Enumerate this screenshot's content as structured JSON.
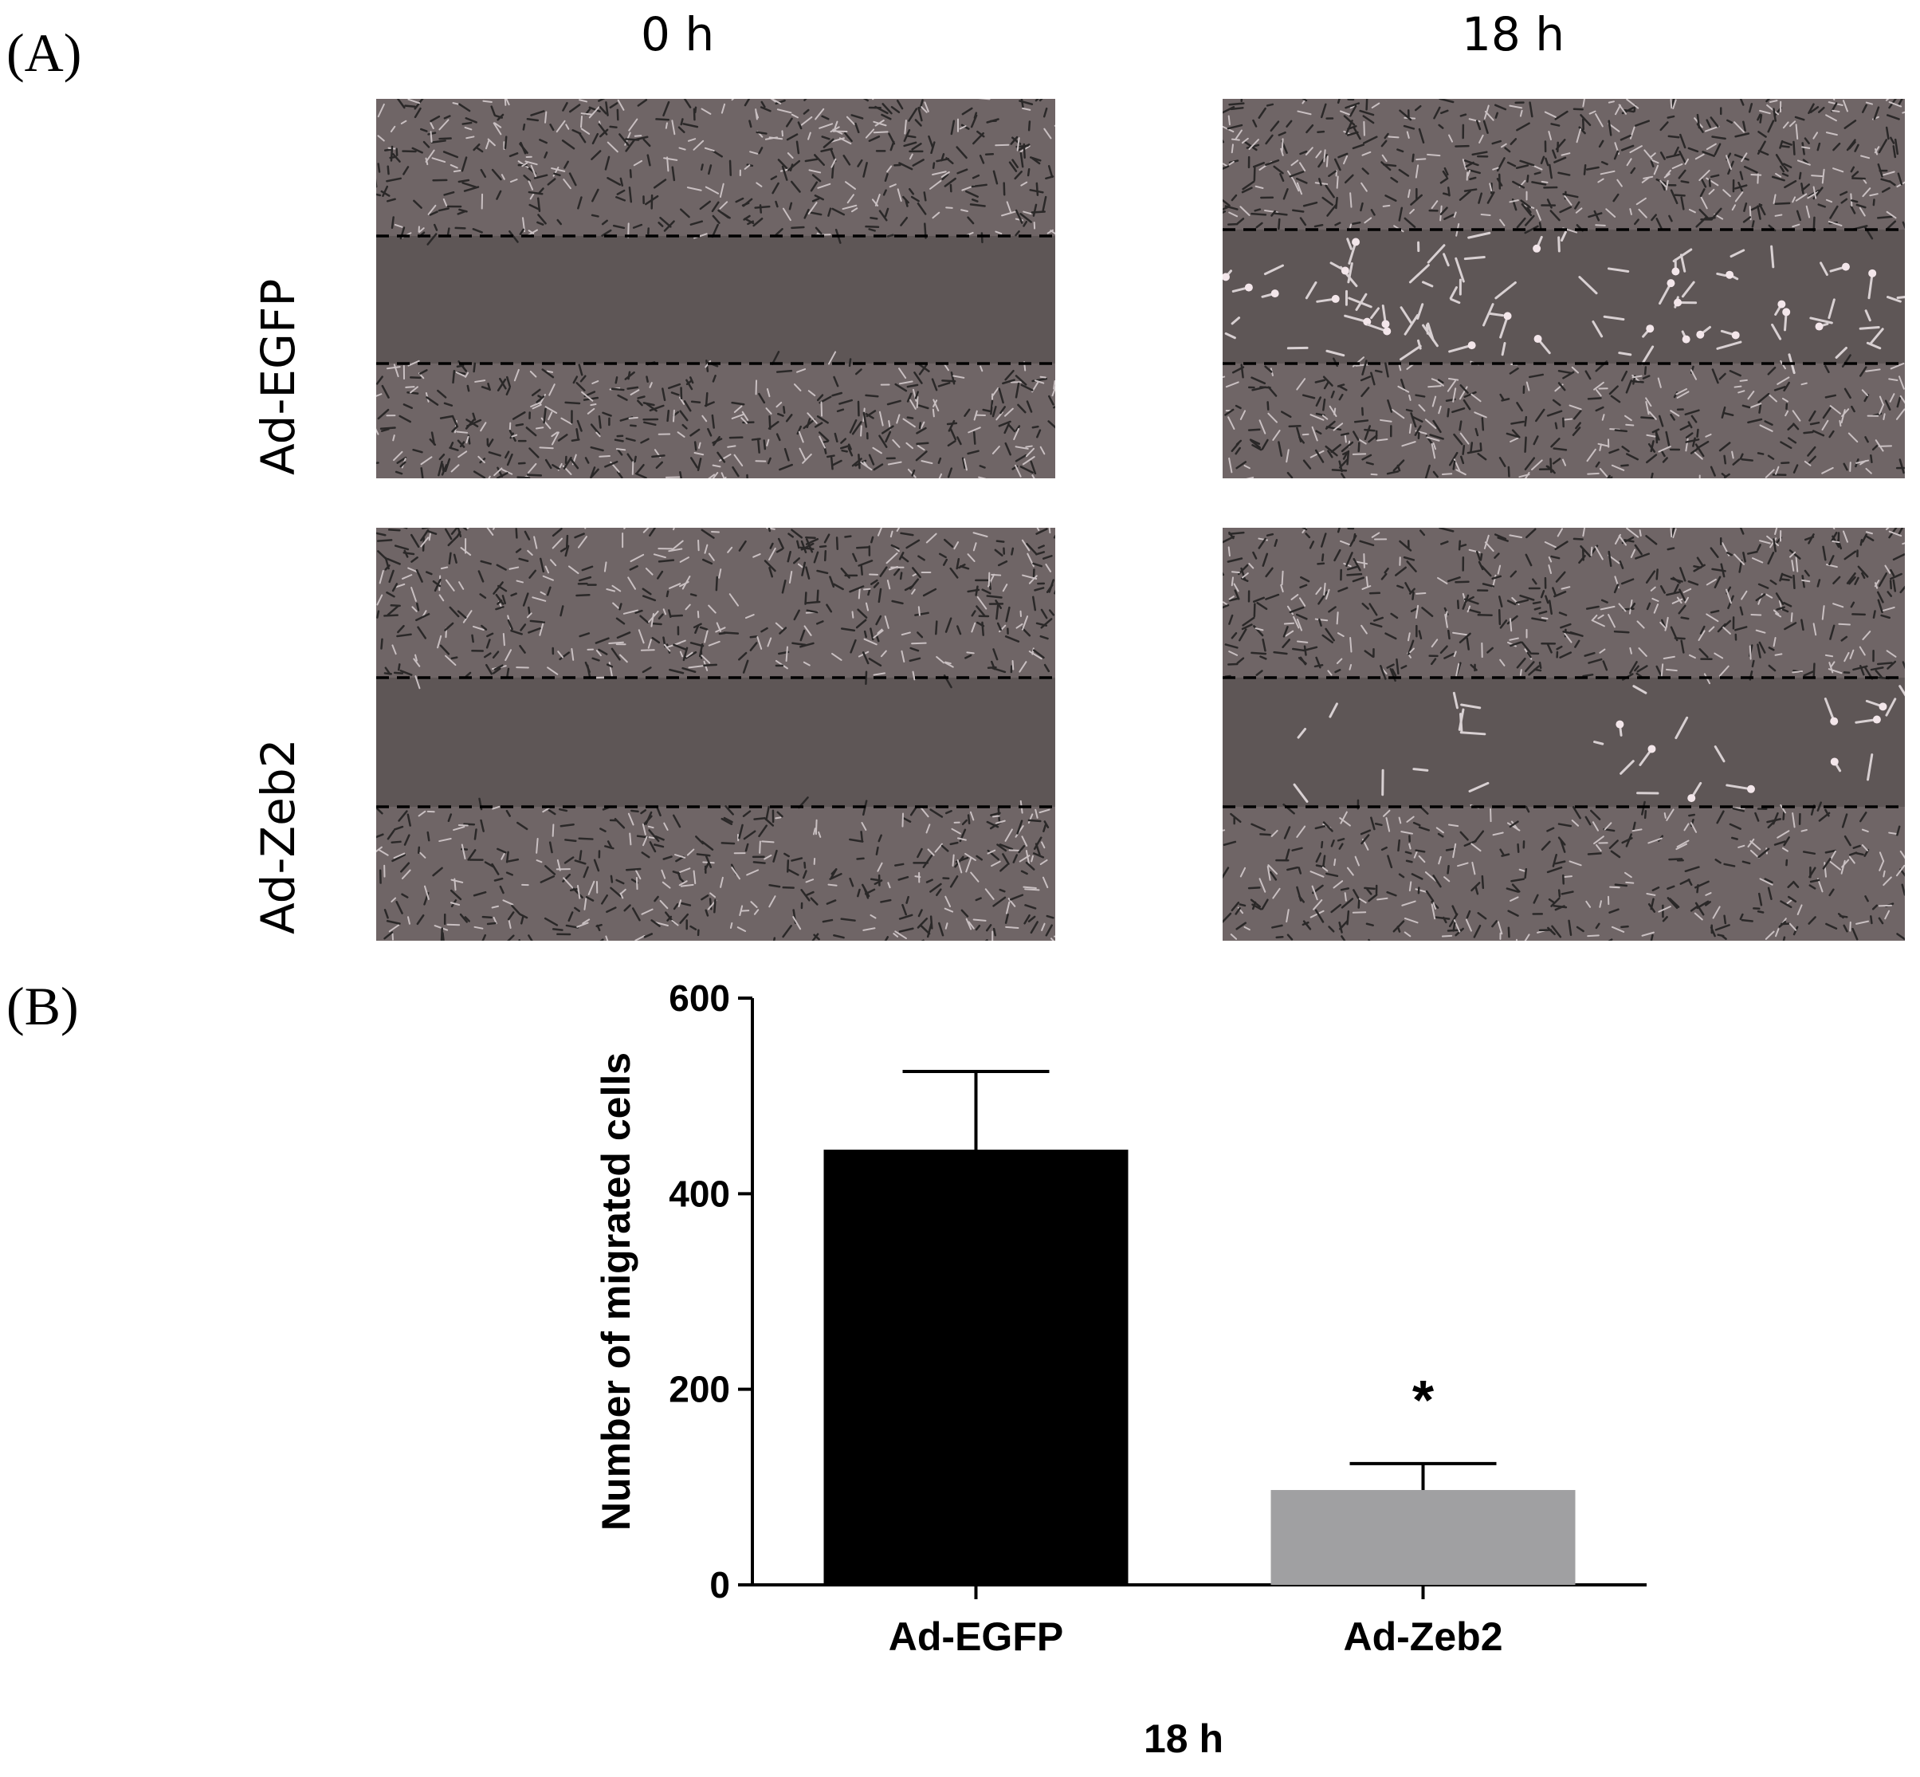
{
  "figure": {
    "panel_a_label": "(A)",
    "panel_b_label": "(B)",
    "columns": [
      "0 h",
      "18 h"
    ],
    "rows": [
      "Ad-EGFP",
      "Ad-Zeb2"
    ],
    "micrographs": [
      {
        "name": "micrograph-ad-egfp-0h",
        "row": "Ad-EGFP",
        "col": "0 h",
        "cells_in_gap": 0
      },
      {
        "name": "micrograph-ad-egfp-18h",
        "row": "Ad-EGFP",
        "col": "18 h",
        "cells_in_gap": 90
      },
      {
        "name": "micrograph-ad-zeb2-0h",
        "row": "Ad-Zeb2",
        "col": "0 h",
        "cells_in_gap": 0
      },
      {
        "name": "micrograph-ad-zeb2-18h",
        "row": "Ad-Zeb2",
        "col": "18 h",
        "cells_in_gap": 28
      }
    ],
    "colors": {
      "monolayer": "#6f6566",
      "scratch": "#5e5656",
      "cell": "#2a2828",
      "bright_cell": "#f3e6ea"
    }
  },
  "chart_data": {
    "type": "bar",
    "categories": [
      "Ad-EGFP",
      "Ad-Zeb2"
    ],
    "values": [
      445,
      97
    ],
    "error_upper": [
      80,
      27
    ],
    "colors": [
      "#000000",
      "#a0a0a2"
    ],
    "ylabel": "Number of migrated cells",
    "xlabel": "18 h",
    "ylim": [
      0,
      600
    ],
    "yticks": [
      0,
      200,
      400,
      600
    ],
    "annotations": [
      {
        "category": "Ad-Zeb2",
        "text": "*"
      }
    ],
    "grid": false
  }
}
